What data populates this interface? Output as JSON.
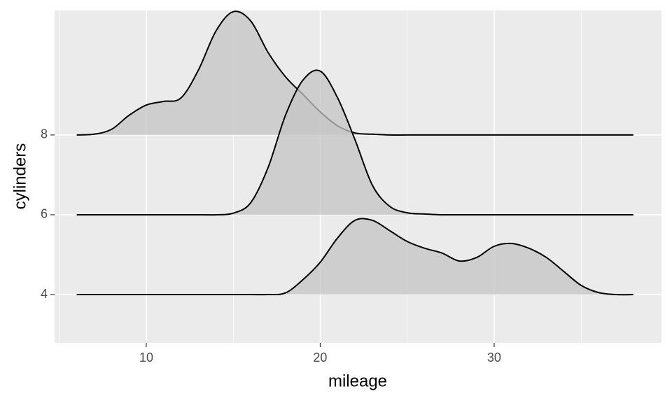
{
  "chart_data": {
    "type": "ridgeline",
    "x_label": "mileage",
    "y_label": "cylinders",
    "x": [
      6,
      7,
      8,
      9,
      10,
      11,
      12,
      13,
      14,
      15,
      16,
      17,
      18,
      19,
      20,
      21,
      22,
      23,
      24,
      25,
      26,
      27,
      28,
      29,
      30,
      31,
      32,
      33,
      34,
      35,
      36,
      37,
      38
    ],
    "series": [
      {
        "color": "#c4c4c4",
        "values": [
          8.0,
          8.02,
          8.14,
          8.49,
          8.75,
          8.84,
          8.93,
          9.63,
          10.6,
          11.09,
          10.86,
          10.07,
          9.46,
          9.02,
          8.58,
          8.23,
          8.05,
          8.02,
          8.0,
          8.0,
          8.0,
          8.0,
          8.0,
          8.0,
          8.0,
          8.0,
          8.0,
          8.0,
          8.0,
          8.0,
          8.0,
          8.0,
          8.0
        ]
      },
      {
        "color": "#c4c4c4",
        "values": [
          6.0,
          6.0,
          6.0,
          6.0,
          6.0,
          6.0,
          6.0,
          6.0,
          6.0,
          6.04,
          6.3,
          7.18,
          8.49,
          9.37,
          9.6,
          8.93,
          7.88,
          6.74,
          6.21,
          6.05,
          6.02,
          6.0,
          6.0,
          6.0,
          6.0,
          6.0,
          6.0,
          6.0,
          6.0,
          6.0,
          6.0,
          6.0,
          6.0
        ]
      },
      {
        "color": "#c4c4c4",
        "values": [
          4.0,
          4.0,
          4.0,
          4.0,
          4.0,
          4.0,
          4.0,
          4.0,
          4.0,
          4.0,
          4.0,
          4.0,
          4.04,
          4.37,
          4.81,
          5.42,
          5.86,
          5.86,
          5.6,
          5.33,
          5.16,
          5.04,
          4.84,
          4.93,
          5.21,
          5.28,
          5.16,
          4.93,
          4.58,
          4.23,
          4.05,
          4.0,
          4.0
        ]
      }
    ],
    "xlim": [
      4.73,
      39.62
    ],
    "xticks": [
      10,
      20,
      30
    ],
    "xminor": [
      5,
      15,
      25,
      35
    ],
    "ylim": [
      2.79,
      11.12
    ],
    "yticks": [
      4,
      6,
      8
    ],
    "grid": true
  }
}
